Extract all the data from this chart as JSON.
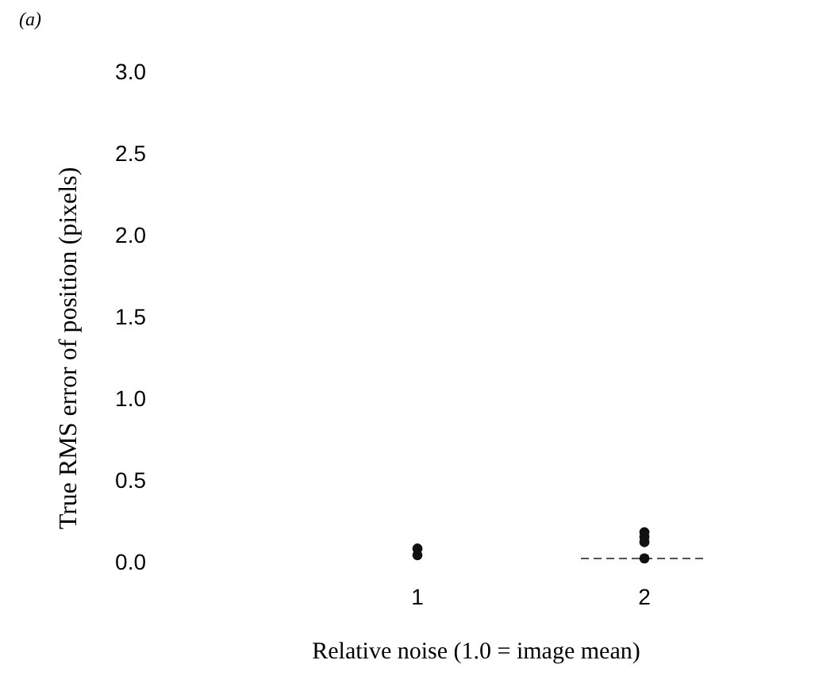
{
  "chart_data": {
    "type": "scatter",
    "title": "(a)",
    "xlabel": "Relative noise (1.0 = image mean)",
    "ylabel": "True RMS error of position (pixels)",
    "categories": [
      "1",
      "2"
    ],
    "series": [
      {
        "color": "#111111",
        "x": [
          "1",
          "1",
          "2",
          "2",
          "2",
          "2"
        ],
        "values": [
          0.04,
          0.08,
          0.02,
          0.12,
          0.15,
          0.18
        ]
      }
    ],
    "ylim": [
      0,
      3.0
    ],
    "yticks": [
      {
        "value": 0,
        "label": "0.0"
      },
      {
        "value": 0.5,
        "label": "0.5"
      },
      {
        "value": 1,
        "label": "1.0"
      },
      {
        "value": 1.5,
        "label": "1.5"
      },
      {
        "value": 2,
        "label": "2.0"
      },
      {
        "value": 2.5,
        "label": "2.5"
      },
      {
        "value": 3,
        "label": "3.0"
      }
    ],
    "ref_lines": [
      {
        "axis": "y",
        "value": 0.02,
        "color": "#555555",
        "line_style": "dashed"
      }
    ],
    "marker": "circle",
    "grid": false
  }
}
